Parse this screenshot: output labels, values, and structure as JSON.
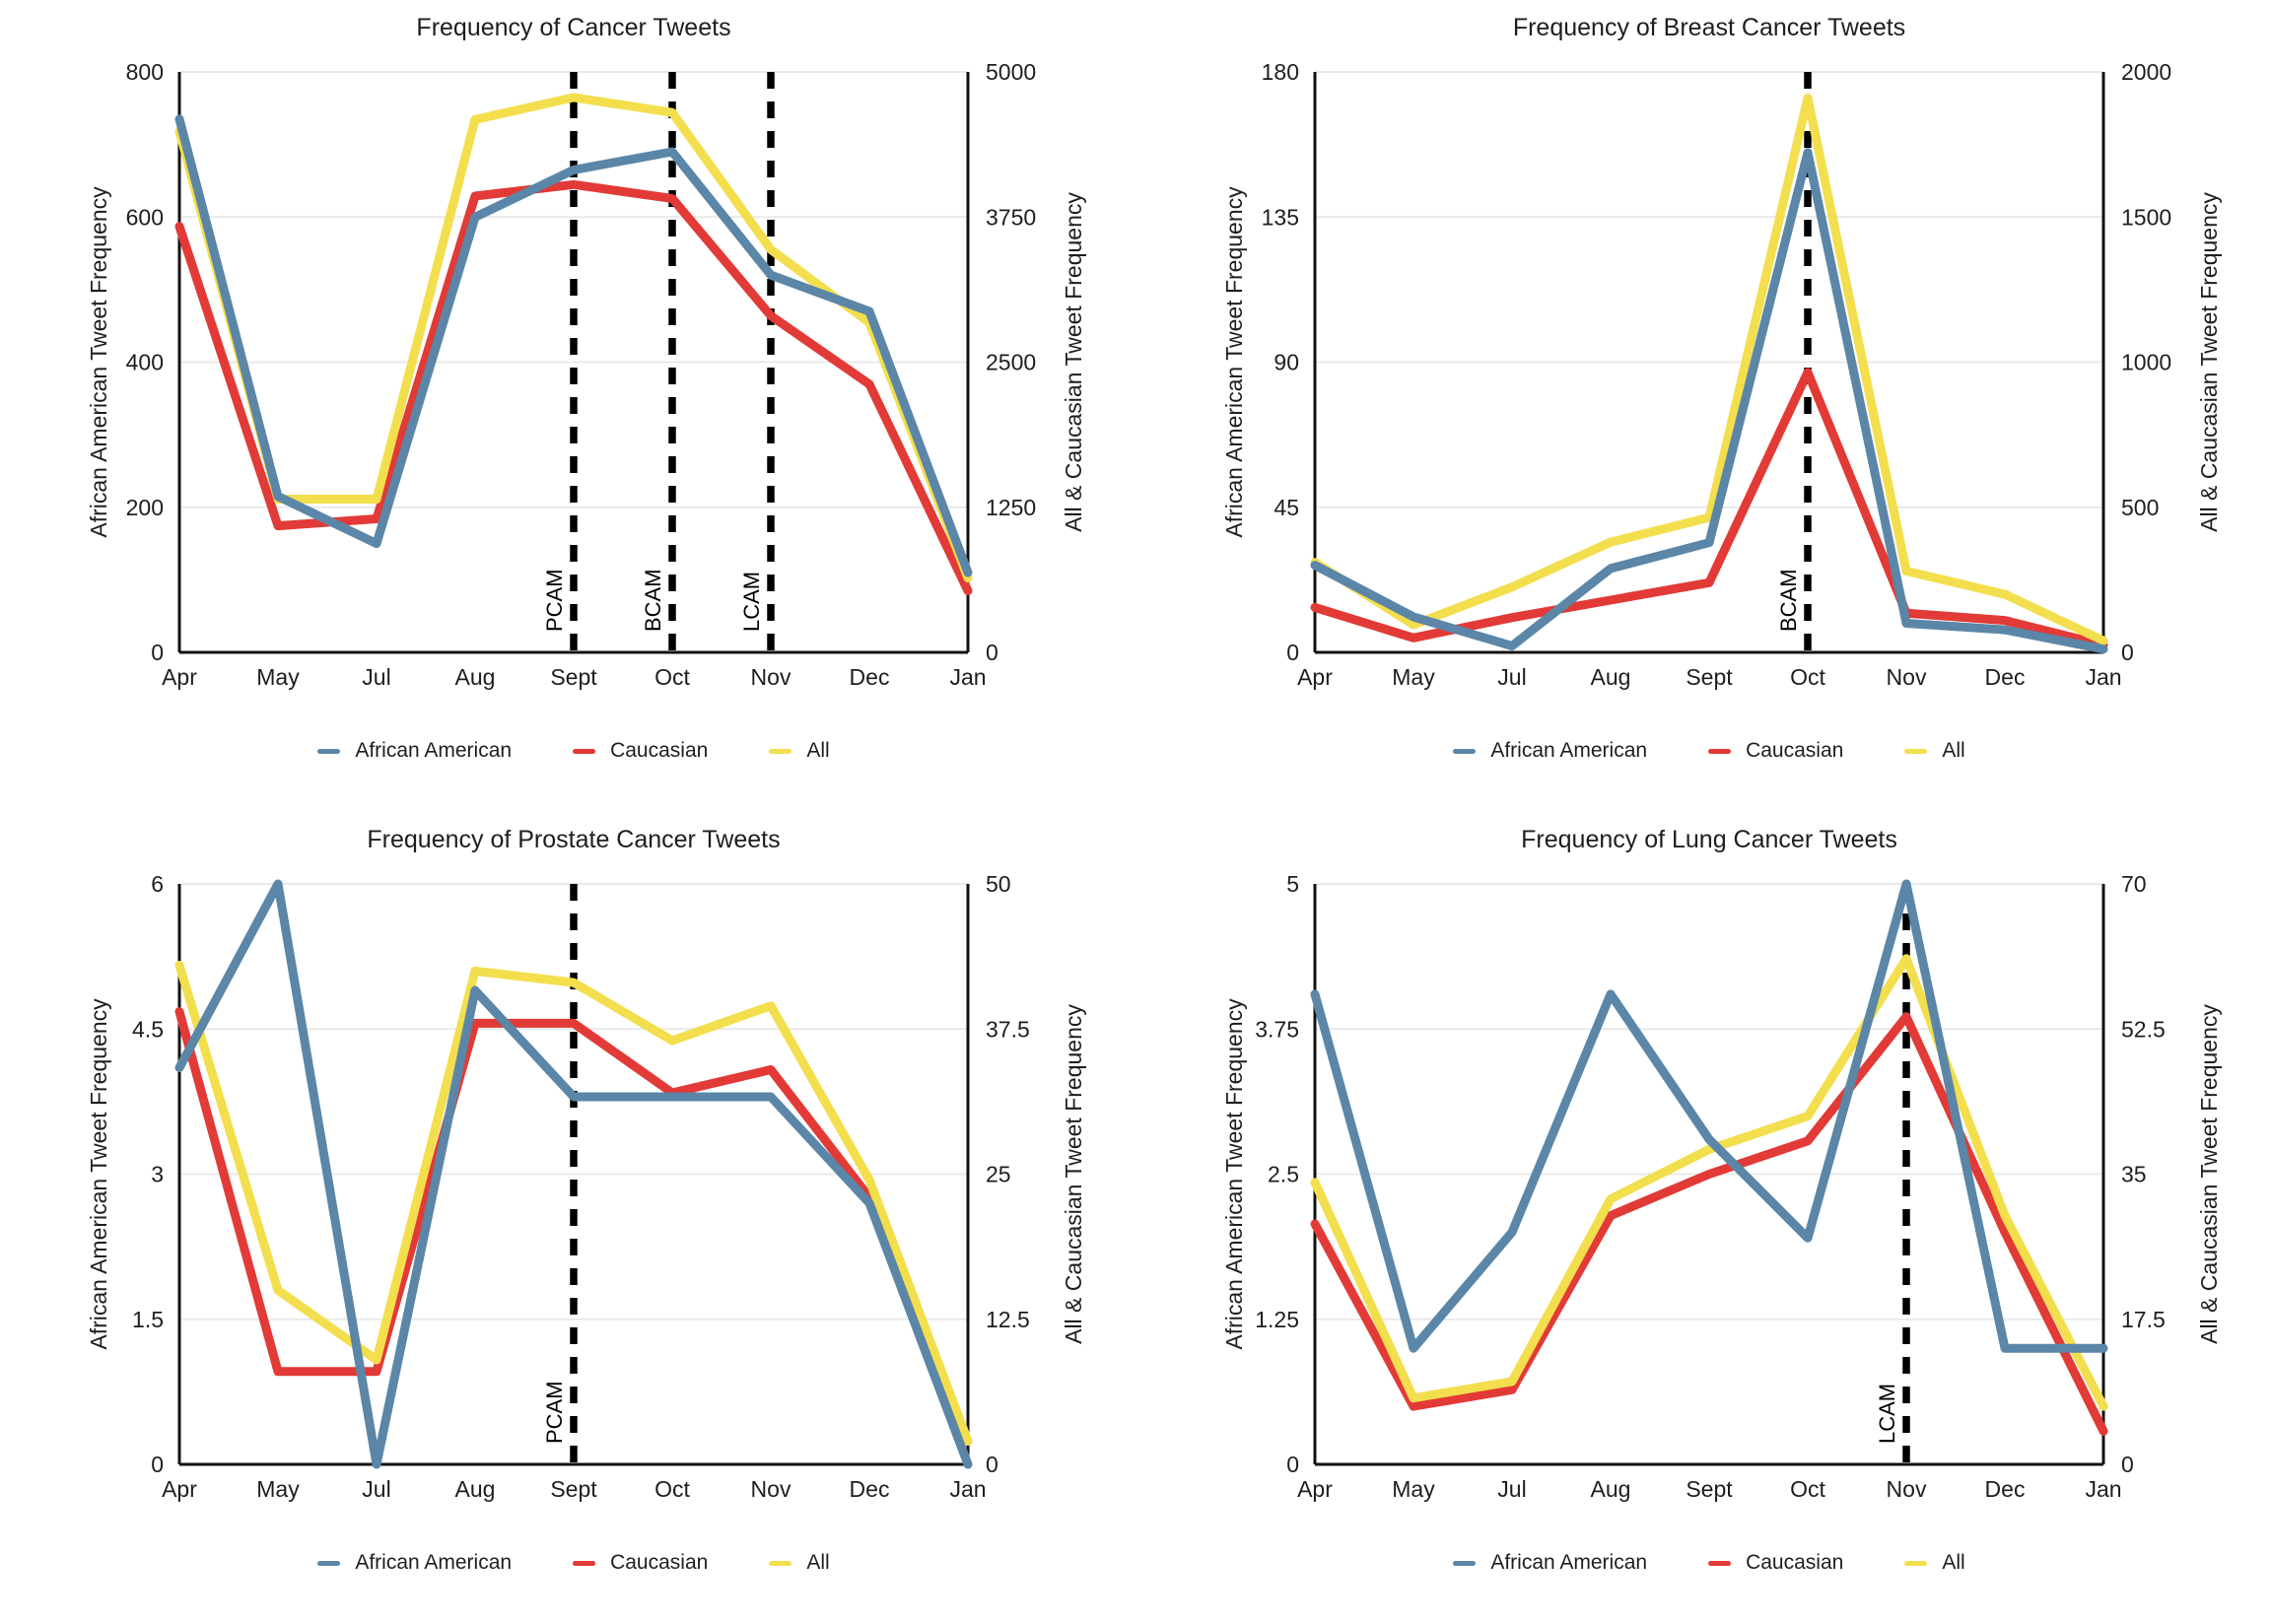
{
  "colors": {
    "african_american": "#5b86a7",
    "caucasian": "#e23a36",
    "all": "#f3de4d",
    "grid": "#e9e9e9",
    "axis": "#111111",
    "annotation": "#000000",
    "text": "#1e1e1e"
  },
  "legend": {
    "items": [
      {
        "label": "African American",
        "color_key": "african_american"
      },
      {
        "label": "Caucasian",
        "color_key": "caucasian"
      },
      {
        "label": "All",
        "color_key": "all"
      }
    ]
  },
  "months": [
    "Apr",
    "May",
    "Jul",
    "Aug",
    "Sept",
    "Oct",
    "Nov",
    "Dec",
    "Jan"
  ],
  "chart_data": [
    {
      "type": "line",
      "title": "Frequency of Cancer Tweets",
      "left_ylabel": "African American Tweet Frequency",
      "right_ylabel": "All & Caucasian Tweet Frequency",
      "categories": [
        "Apr",
        "May",
        "Jul",
        "Aug",
        "Sept",
        "Oct",
        "Nov",
        "Dec",
        "Jan"
      ],
      "grid": true,
      "legend_position": "bottom",
      "left_axis": {
        "max": 800,
        "tick_labels": [
          "800",
          "600",
          "400",
          "200",
          "0"
        ]
      },
      "right_axis": {
        "max": 5000,
        "tick_labels": [
          "5000",
          "3750",
          "2500",
          "1250",
          "0"
        ]
      },
      "series": [
        {
          "name": "African American",
          "axis": "left",
          "color_key": "african_american",
          "values": [
            735,
            215,
            150,
            600,
            665,
            690,
            520,
            470,
            110
          ]
        },
        {
          "name": "Caucasian",
          "axis": "right",
          "color_key": "caucasian",
          "values": [
            3670,
            1090,
            1150,
            3930,
            4030,
            3910,
            2900,
            2310,
            530
          ]
        },
        {
          "name": "All",
          "axis": "right",
          "color_key": "all",
          "values": [
            4490,
            1320,
            1320,
            4590,
            4780,
            4650,
            3470,
            2840,
            640
          ]
        }
      ],
      "annotations": [
        {
          "label": "PCAM",
          "month": "Sept"
        },
        {
          "label": "BCAM",
          "month": "Oct"
        },
        {
          "label": "LCAM",
          "month": "Nov"
        }
      ]
    },
    {
      "type": "line",
      "title": "Frequency of Breast Cancer Tweets",
      "left_ylabel": "African American Tweet Frequency",
      "right_ylabel": "All & Caucasian Tweet Frequency",
      "categories": [
        "Apr",
        "May",
        "Jul",
        "Aug",
        "Sept",
        "Oct",
        "Nov",
        "Dec",
        "Jan"
      ],
      "grid": true,
      "legend_position": "bottom",
      "left_axis": {
        "max": 180,
        "tick_labels": [
          "180",
          "135",
          "90",
          "45",
          "0"
        ]
      },
      "right_axis": {
        "max": 2000,
        "tick_labels": [
          "2000",
          "1500",
          "1000",
          "500",
          "0"
        ]
      },
      "series": [
        {
          "name": "African American",
          "axis": "left",
          "color_key": "african_american",
          "values": [
            27,
            11,
            2,
            26,
            34,
            155,
            9,
            7,
            1
          ]
        },
        {
          "name": "Caucasian",
          "axis": "right",
          "color_key": "caucasian",
          "values": [
            155,
            50,
            120,
            180,
            240,
            965,
            135,
            110,
            25
          ]
        },
        {
          "name": "All",
          "axis": "right",
          "color_key": "all",
          "values": [
            310,
            95,
            225,
            380,
            465,
            1910,
            280,
            200,
            40
          ]
        }
      ],
      "annotations": [
        {
          "label": "BCAM",
          "month": "Oct"
        }
      ]
    },
    {
      "type": "line",
      "title": "Frequency of Prostate Cancer Tweets",
      "left_ylabel": "African American Tweet Frequency",
      "right_ylabel": "All & Caucasian Tweet Frequency",
      "categories": [
        "Apr",
        "May",
        "Jul",
        "Aug",
        "Sept",
        "Oct",
        "Nov",
        "Dec",
        "Jan"
      ],
      "grid": true,
      "legend_position": "bottom",
      "left_axis": {
        "max": 6,
        "tick_labels": [
          "6",
          "4.5",
          "3",
          "1.5",
          "0"
        ]
      },
      "right_axis": {
        "max": 50,
        "tick_labels": [
          "50",
          "37.5",
          "25",
          "12.5",
          "0"
        ]
      },
      "series": [
        {
          "name": "African American",
          "axis": "left",
          "color_key": "african_american",
          "values": [
            4.1,
            6,
            0,
            4.9,
            3.8,
            3.8,
            3.8,
            2.7,
            0
          ]
        },
        {
          "name": "Caucasian",
          "axis": "right",
          "color_key": "caucasian",
          "values": [
            39,
            8,
            8,
            38,
            38,
            32,
            34,
            23,
            2
          ]
        },
        {
          "name": "All",
          "axis": "right",
          "color_key": "all",
          "values": [
            43,
            15,
            9,
            42.5,
            41.5,
            36.5,
            39.5,
            24.5,
            2
          ]
        }
      ],
      "annotations": [
        {
          "label": "PCAM",
          "month": "Sept"
        }
      ]
    },
    {
      "type": "line",
      "title": "Frequency of Lung Cancer Tweets",
      "left_ylabel": "African American Tweet Frequency",
      "right_ylabel": "All & Caucasian Tweet Frequency",
      "categories": [
        "Apr",
        "May",
        "Jul",
        "Aug",
        "Sept",
        "Oct",
        "Nov",
        "Dec",
        "Jan"
      ],
      "grid": true,
      "legend_position": "bottom",
      "left_axis": {
        "max": 5,
        "tick_labels": [
          "5",
          "3.75",
          "2.5",
          "1.25",
          "0"
        ]
      },
      "right_axis": {
        "max": 70,
        "tick_labels": [
          "70",
          "52.5",
          "35",
          "17.5",
          "0"
        ]
      },
      "series": [
        {
          "name": "African American",
          "axis": "left",
          "color_key": "african_american",
          "values": [
            4.05,
            1,
            2,
            4.05,
            2.8,
            1.95,
            5,
            1,
            1
          ]
        },
        {
          "name": "Caucasian",
          "axis": "right",
          "color_key": "caucasian",
          "values": [
            29,
            7,
            9,
            30,
            35,
            39,
            54,
            28,
            4
          ]
        },
        {
          "name": "All",
          "axis": "right",
          "color_key": "all",
          "values": [
            34,
            8,
            10,
            32,
            38,
            42,
            61,
            30,
            7
          ]
        }
      ],
      "annotations": [
        {
          "label": "LCAM",
          "month": "Nov"
        }
      ]
    }
  ]
}
